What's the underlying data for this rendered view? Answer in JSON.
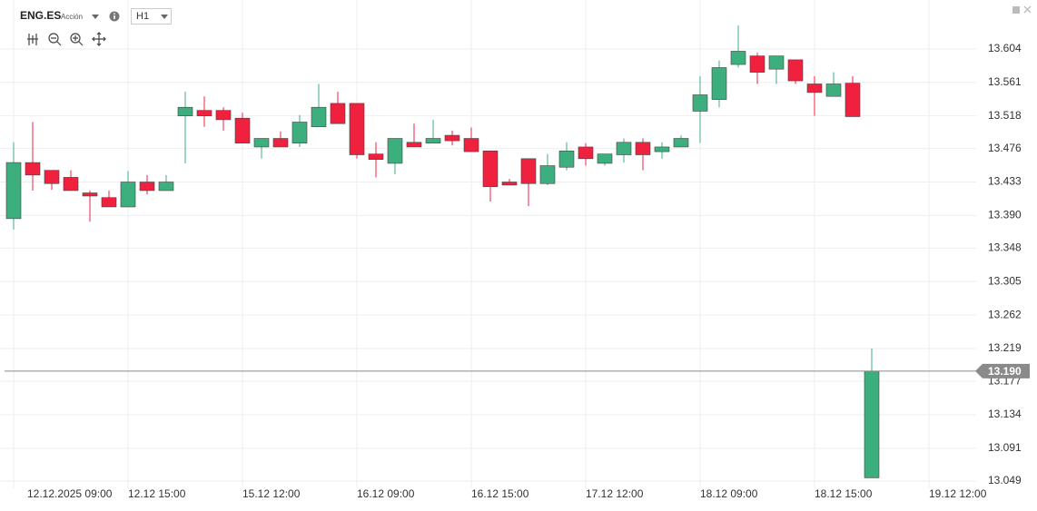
{
  "header": {
    "symbol": "ENG.ES",
    "kind": "Acción",
    "timeframe": "H1"
  },
  "chart_data": {
    "type": "candlestick",
    "categories": [
      "12.12.2025 09:00",
      null,
      null,
      null,
      null,
      null,
      "12.12 15:00",
      null,
      null,
      null,
      null,
      null,
      "15.12 12:00",
      null,
      null,
      null,
      null,
      null,
      "16.12 09:00",
      null,
      null,
      null,
      null,
      null,
      "16.12 15:00",
      null,
      null,
      null,
      null,
      null,
      "17.12 12:00",
      null,
      null,
      null,
      null,
      null,
      "18.12 09:00",
      null,
      null,
      null,
      null,
      null,
      "18.12 15:00",
      null,
      null,
      null,
      null,
      null,
      "19.12 12:00"
    ],
    "open": [
      13.386,
      13.458,
      13.448,
      13.439,
      13.419,
      13.413,
      13.401,
      13.433,
      13.422,
      13.518,
      13.525,
      13.525,
      13.515,
      13.478,
      13.489,
      13.483,
      13.504,
      13.534,
      13.534,
      13.469,
      13.457,
      13.484,
      13.483,
      13.493,
      13.489,
      13.473,
      13.433,
      13.463,
      13.431,
      13.452,
      13.478,
      13.457,
      13.468,
      13.484,
      13.472,
      13.478,
      13.524,
      13.539,
      13.584,
      13.595,
      13.578,
      13.59,
      13.559,
      13.543,
      13.56,
      13.053,
      null,
      null,
      null
    ],
    "high": [
      13.484,
      13.51,
      13.448,
      13.448,
      13.422,
      13.422,
      13.447,
      13.442,
      13.442,
      13.549,
      13.543,
      13.529,
      13.522,
      13.489,
      13.498,
      13.519,
      13.559,
      13.549,
      13.534,
      13.484,
      13.489,
      13.508,
      13.513,
      13.499,
      13.503,
      13.473,
      13.437,
      13.463,
      13.469,
      13.484,
      13.483,
      13.469,
      13.489,
      13.489,
      13.484,
      13.493,
      13.569,
      13.589,
      13.634,
      13.599,
      13.595,
      13.59,
      13.569,
      13.574,
      13.569,
      13.219,
      null,
      null,
      null
    ],
    "low": [
      13.372,
      13.422,
      13.423,
      13.422,
      13.382,
      13.401,
      13.401,
      13.417,
      13.422,
      13.457,
      13.504,
      13.499,
      13.483,
      13.463,
      13.478,
      13.478,
      13.504,
      13.508,
      13.463,
      13.439,
      13.443,
      13.478,
      13.483,
      13.48,
      13.472,
      13.408,
      13.429,
      13.402,
      13.429,
      13.448,
      13.454,
      13.454,
      13.458,
      13.448,
      13.463,
      13.478,
      13.483,
      13.529,
      13.58,
      13.559,
      13.559,
      13.559,
      13.518,
      13.543,
      13.517,
      13.053,
      null,
      null,
      null
    ],
    "close": [
      13.458,
      13.442,
      13.431,
      13.422,
      13.415,
      13.401,
      13.433,
      13.422,
      13.433,
      13.529,
      13.518,
      13.513,
      13.483,
      13.489,
      13.478,
      13.51,
      13.529,
      13.508,
      13.468,
      13.462,
      13.489,
      13.478,
      13.489,
      13.486,
      13.472,
      13.427,
      13.429,
      13.431,
      13.454,
      13.473,
      13.463,
      13.469,
      13.484,
      13.468,
      13.478,
      13.489,
      13.545,
      13.58,
      13.601,
      13.574,
      13.595,
      13.563,
      13.548,
      13.559,
      13.517,
      13.19,
      null,
      null,
      null
    ],
    "up_color": "#3dae7d",
    "down_color": "#f0203f",
    "ylim": [
      13.043,
      13.661
    ],
    "yticks": [
      13.049,
      13.091,
      13.134,
      13.177,
      13.219,
      13.262,
      13.305,
      13.348,
      {
        "value": 13.39,
        "label": "13.390"
      },
      13.433,
      13.476,
      13.518,
      13.561,
      13.604
    ],
    "last_price": {
      "value": 13.19,
      "label": "13.190"
    },
    "grid": true
  }
}
